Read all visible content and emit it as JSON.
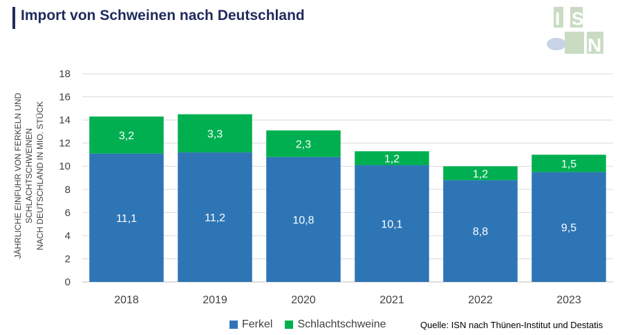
{
  "title": "Import von Schweinen nach Deutschland",
  "logo_text": "ISN",
  "source": "Quelle: ISN nach Thünen-Institut und Destatis",
  "colors": {
    "ferkel": "#2e75b6",
    "schlacht": "#00b050",
    "title": "#1f2a5c"
  },
  "chart_data": {
    "type": "bar",
    "stacked": true,
    "categories": [
      "2018",
      "2019",
      "2020",
      "2021",
      "2022",
      "2023"
    ],
    "series": [
      {
        "name": "Ferkel",
        "values": [
          11.1,
          11.2,
          10.8,
          10.1,
          8.8,
          9.5
        ],
        "labels": [
          "11,1",
          "11,2",
          "10,8",
          "10,1",
          "8,8",
          "9,5"
        ]
      },
      {
        "name": "Schlachtschweine",
        "values": [
          3.2,
          3.3,
          2.3,
          1.2,
          1.2,
          1.5
        ],
        "labels": [
          "3,2",
          "3,3",
          "2,3",
          "1,2",
          "1,2",
          "1,5"
        ]
      }
    ],
    "ylabel_line1": "JÄHRLICHE EINFUHR VON FERKELN UND SCHLACHTSCHWEINEN",
    "ylabel_line2": "NACH DEUTSCHLAND IN MIO. STÜCK",
    "ylim": [
      0,
      18
    ],
    "yticks": [
      0,
      2,
      4,
      6,
      8,
      10,
      12,
      14,
      16,
      18
    ],
    "grid": true,
    "legend_position": "bottom"
  }
}
